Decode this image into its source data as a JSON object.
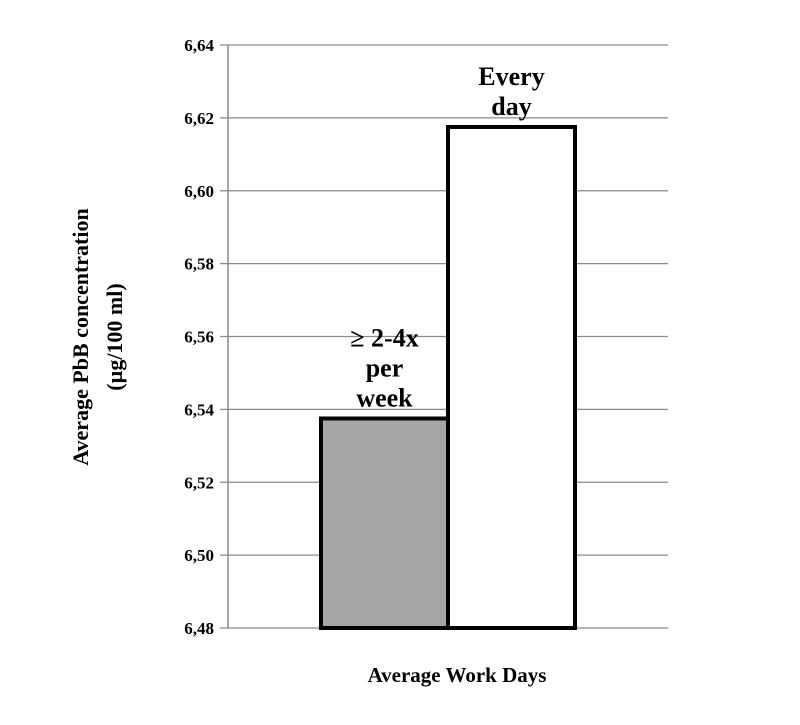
{
  "chart_data": {
    "type": "bar",
    "categories": [
      "≥ 2-4x per week",
      "Every day"
    ],
    "category_label_lines": [
      [
        "≥ 2-4x",
        "per",
        "week"
      ],
      [
        "Every",
        "day"
      ]
    ],
    "values": [
      6.5375,
      6.6175
    ],
    "bar_colors": [
      "#a6a6a6",
      "#ffffff"
    ],
    "xlabel": "Average Work Days",
    "ylabel_lines": [
      "Average PbB concentration",
      "(µg/100 ml)"
    ],
    "ylim": [
      6.48,
      6.64
    ],
    "yticks": [
      "6,48",
      "6,50",
      "6,52",
      "6,54",
      "6,56",
      "6,58",
      "6,60",
      "6,62",
      "6,64"
    ],
    "grid": true,
    "legend": "none"
  }
}
